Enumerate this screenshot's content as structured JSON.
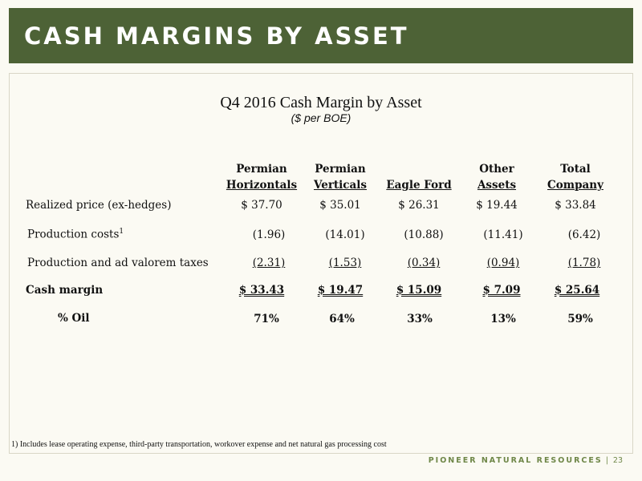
{
  "banner": {
    "title": "CASH MARGINS BY ASSET"
  },
  "table": {
    "title": "Q4 2016 Cash Margin by Asset",
    "subtitle": "($ per BOE)",
    "columns": [
      {
        "line1": "Permian",
        "line2": "Horizontals"
      },
      {
        "line1": "Permian",
        "line2": "Verticals"
      },
      {
        "line1": "",
        "line2": "Eagle Ford"
      },
      {
        "line1": "Other",
        "line2": "Assets"
      },
      {
        "line1": "Total",
        "line2": "Company"
      }
    ],
    "rows": [
      {
        "label": "Realized price (ex-hedges)",
        "sup": "",
        "values": [
          "$ 37.70",
          "$ 35.01",
          "$ 26.31",
          "$ 19.44",
          "$ 33.84"
        ]
      },
      {
        "label": "Production costs",
        "sup": "1",
        "values": [
          "(1.96)",
          "(14.01)",
          "(10.88)",
          "(11.41)",
          "(6.42)"
        ]
      },
      {
        "label": "Production and ad valorem taxes",
        "sup": "",
        "values": [
          "(2.31)",
          "(1.53)",
          "(0.34)",
          "(0.94)",
          "(1.78)"
        ]
      },
      {
        "label": "Cash margin",
        "sup": "",
        "values": [
          "$ 33.43",
          "$ 19.47",
          "$ 15.09",
          "$ 7.09",
          "$ 25.64"
        ]
      },
      {
        "label": "% Oil",
        "sup": "",
        "values": [
          "71%",
          "64%",
          "33%",
          "13%",
          "59%"
        ]
      }
    ]
  },
  "footnote": "1) Includes lease operating expense, third-party transportation, workover expense and net natural gas processing cost",
  "footer": {
    "company": "PIONEER NATURAL RESOURCES",
    "separator": "|",
    "page": "23"
  }
}
